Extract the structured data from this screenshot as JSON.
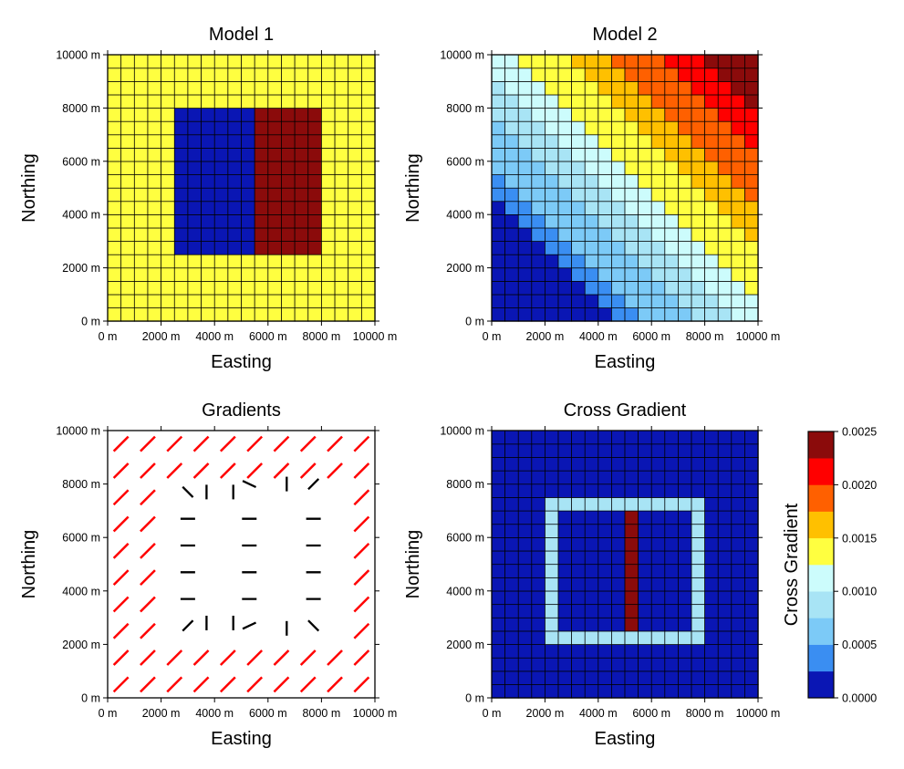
{
  "chart_data": [
    {
      "type": "heatmap",
      "title": "Model 1",
      "xlabel": "Easting",
      "ylabel": "Northing",
      "xlim": [
        0,
        10000
      ],
      "ylim": [
        0,
        10000
      ],
      "xticks": [
        "0 m",
        "2000 m",
        "4000 m",
        "6000 m",
        "8000 m",
        "10000 m"
      ],
      "yticks": [
        "0 m",
        "2000 m",
        "4000 m",
        "6000 m",
        "8000 m",
        "10000 m"
      ],
      "grid": "20x20 cells",
      "background_value": "yellow",
      "blocks": [
        {
          "x": [
            2500,
            5500
          ],
          "y": [
            2500,
            8000
          ],
          "color": "#0a16b4"
        },
        {
          "x": [
            5500,
            8000
          ],
          "y": [
            2500,
            8000
          ],
          "color": "#8b0b0b"
        }
      ]
    },
    {
      "type": "heatmap",
      "title": "Model 2",
      "xlabel": "Easting",
      "ylabel": "Northing",
      "xlim": [
        0,
        10000
      ],
      "ylim": [
        0,
        10000
      ],
      "xticks": [
        "0 m",
        "2000 m",
        "4000 m",
        "6000 m",
        "8000 m",
        "10000 m"
      ],
      "yticks": [
        "0 m",
        "2000 m",
        "4000 m",
        "6000 m",
        "8000 m",
        "10000 m"
      ],
      "grid": "20x20 cells",
      "pattern": "diagonal gradient increasing toward top-right"
    },
    {
      "type": "vector",
      "title": "Gradients",
      "xlabel": "Easting",
      "ylabel": "Northing",
      "xlim": [
        0,
        10000
      ],
      "ylim": [
        0,
        10000
      ],
      "xticks": [
        "0 m",
        "2000 m",
        "4000 m",
        "6000 m",
        "8000 m",
        "10000 m"
      ],
      "yticks": [
        "0 m",
        "2000 m",
        "4000 m",
        "6000 m",
        "8000 m",
        "10000 m"
      ],
      "series": [
        {
          "color": "#ff0000"
        },
        {
          "color": "#000000"
        }
      ],
      "black_vectors": [
        {
          "x": 3000,
          "y": 7700,
          "angle": -45
        },
        {
          "x": 3700,
          "y": 7700,
          "angle": 90
        },
        {
          "x": 4700,
          "y": 7700,
          "angle": 90
        },
        {
          "x": 5300,
          "y": 8000,
          "angle": -25
        },
        {
          "x": 6700,
          "y": 8000,
          "angle": 90
        },
        {
          "x": 7700,
          "y": 8000,
          "angle": 45
        },
        {
          "x": 3000,
          "y": 6700,
          "angle": 0
        },
        {
          "x": 5300,
          "y": 6700,
          "angle": 0
        },
        {
          "x": 7700,
          "y": 6700,
          "angle": 0
        },
        {
          "x": 3000,
          "y": 5700,
          "angle": 0
        },
        {
          "x": 5300,
          "y": 5700,
          "angle": 0
        },
        {
          "x": 7700,
          "y": 5700,
          "angle": 0
        },
        {
          "x": 3000,
          "y": 4700,
          "angle": 0
        },
        {
          "x": 5300,
          "y": 4700,
          "angle": 0
        },
        {
          "x": 7700,
          "y": 4700,
          "angle": 0
        },
        {
          "x": 3000,
          "y": 3700,
          "angle": 0
        },
        {
          "x": 5300,
          "y": 3700,
          "angle": 0
        },
        {
          "x": 7700,
          "y": 3700,
          "angle": 0
        },
        {
          "x": 3000,
          "y": 2700,
          "angle": 45
        },
        {
          "x": 3700,
          "y": 2800,
          "angle": 90
        },
        {
          "x": 4700,
          "y": 2800,
          "angle": 90
        },
        {
          "x": 5300,
          "y": 2700,
          "angle": 25
        },
        {
          "x": 6700,
          "y": 2600,
          "angle": 90
        },
        {
          "x": 7700,
          "y": 2700,
          "angle": -45
        }
      ]
    },
    {
      "type": "heatmap",
      "title": "Cross Gradient",
      "xlabel": "Easting",
      "ylabel": "Northing",
      "xlim": [
        0,
        10000
      ],
      "ylim": [
        0,
        10000
      ],
      "xticks": [
        "0 m",
        "2000 m",
        "4000 m",
        "6000 m",
        "8000 m",
        "10000 m"
      ],
      "yticks": [
        "0 m",
        "2000 m",
        "4000 m",
        "6000 m",
        "8000 m",
        "10000 m"
      ],
      "grid": "20x20 cells",
      "colorbar": {
        "label": "Cross Gradient",
        "range": [
          0,
          0.0025
        ],
        "ticks": [
          "0.0000",
          "0.0005",
          "0.0010",
          "0.0015",
          "0.0020",
          "0.0025"
        ],
        "colors": [
          "#0a16b4",
          "#3a8ef2",
          "#7ccaf7",
          "#a8e4f5",
          "#ccfcfc",
          "#ffff40",
          "#ffc000",
          "#ff6000",
          "#ff0000",
          "#8b0b0b"
        ]
      },
      "frame_value": 0.0008,
      "center_line_value": 0.0025
    }
  ]
}
